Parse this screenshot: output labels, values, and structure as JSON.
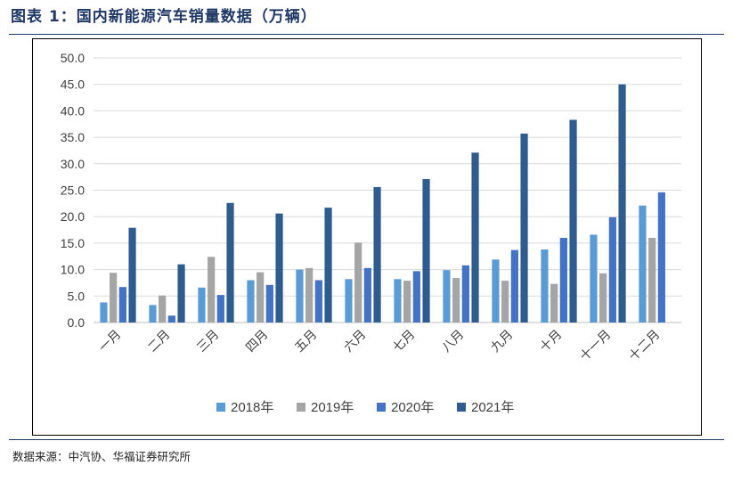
{
  "figure": {
    "title": "图表 1：国内新能源汽车销量数据（万辆）",
    "source": "数据来源：中汽协、华福证券研究所"
  },
  "chart_data": {
    "type": "bar",
    "title": "",
    "xlabel": "",
    "ylabel": "",
    "ylim": [
      0,
      50
    ],
    "yticks": [
      "0.0",
      "5.0",
      "10.0",
      "15.0",
      "20.0",
      "25.0",
      "30.0",
      "35.0",
      "40.0",
      "45.0",
      "50.0"
    ],
    "categories": [
      "一月",
      "二月",
      "三月",
      "四月",
      "五月",
      "六月",
      "七月",
      "八月",
      "九月",
      "十月",
      "十一月",
      "十二月"
    ],
    "grid": "horizontal",
    "legend_position": "bottom",
    "series": [
      {
        "name": "2018年",
        "color": "#5b9bd5",
        "values": [
          3.8,
          3.3,
          6.6,
          8.0,
          10.0,
          8.2,
          8.2,
          9.9,
          11.9,
          13.8,
          16.6,
          22.1
        ]
      },
      {
        "name": "2019年",
        "color": "#a5a5a5",
        "values": [
          9.4,
          5.1,
          12.4,
          9.5,
          10.3,
          15.1,
          7.9,
          8.4,
          7.9,
          7.3,
          9.3,
          16.0
        ]
      },
      {
        "name": "2020年",
        "color": "#4472c4",
        "values": [
          6.7,
          1.3,
          5.2,
          7.1,
          8.0,
          10.3,
          9.7,
          10.8,
          13.7,
          16.0,
          19.9,
          24.6
        ]
      },
      {
        "name": "2021年",
        "color": "#2e5c8f",
        "values": [
          17.9,
          11.0,
          22.6,
          20.6,
          21.7,
          25.6,
          27.1,
          32.1,
          35.7,
          38.3,
          45.0,
          null
        ]
      }
    ]
  }
}
